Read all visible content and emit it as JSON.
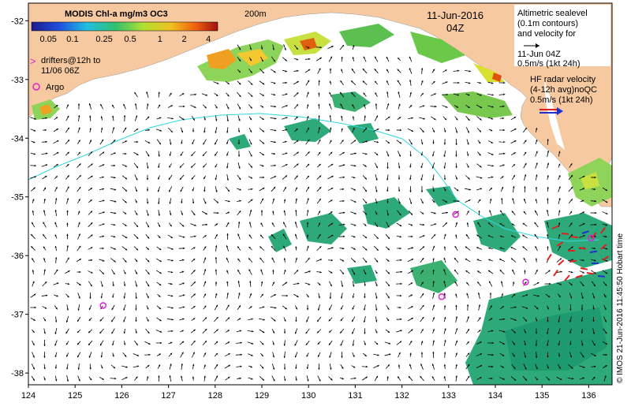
{
  "colorbar": {
    "title": "MODIS Chl-a mg/m3 OC3",
    "ticks": [
      "0.05",
      "0.1",
      "0.25",
      "0.5",
      "1",
      "2",
      "4"
    ]
  },
  "isobath_label": "200m",
  "date": "11-Jun-2016",
  "time": "04Z",
  "altimetric_legend": [
    "Altimetric sealevel",
    "(0.1m contours)",
    "and velocity for",
    "11-Jun 04Z",
    "0.5m/s (1kt 24h)"
  ],
  "hf_legend": [
    "HF radar velocity",
    "(4-12h avg)noQC",
    "0.5m/s (1kt 24h)"
  ],
  "drifters_label": [
    "drifters@12h to",
    "11/06 06Z"
  ],
  "argo_label": "Argo",
  "credit": "© IMOS 21-Jun-2016 11:45:50 Hobart time",
  "axes": {
    "lon_ticks": [
      "124",
      "125",
      "126",
      "127",
      "128",
      "129",
      "130",
      "131",
      "132",
      "133",
      "134",
      "135",
      "136"
    ],
    "lat_ticks": [
      "-32",
      "-33",
      "-34",
      "-35",
      "-36",
      "-37",
      "-38"
    ]
  },
  "colors": {
    "land": "#f7c9a0",
    "isobath": "#33d6e0",
    "argo": "#e020d0",
    "hf_radar": "#e02020",
    "hf_radar_2": "#2030d0"
  },
  "argo_floats": [
    {
      "lon": 125.6,
      "lat": -36.85
    },
    {
      "lon": 133.15,
      "lat": -35.3
    },
    {
      "lon": 132.85,
      "lat": -36.7
    },
    {
      "lon": 134.65,
      "lat": -36.45
    },
    {
      "lon": 136.05,
      "lat": -35.7
    }
  ]
}
